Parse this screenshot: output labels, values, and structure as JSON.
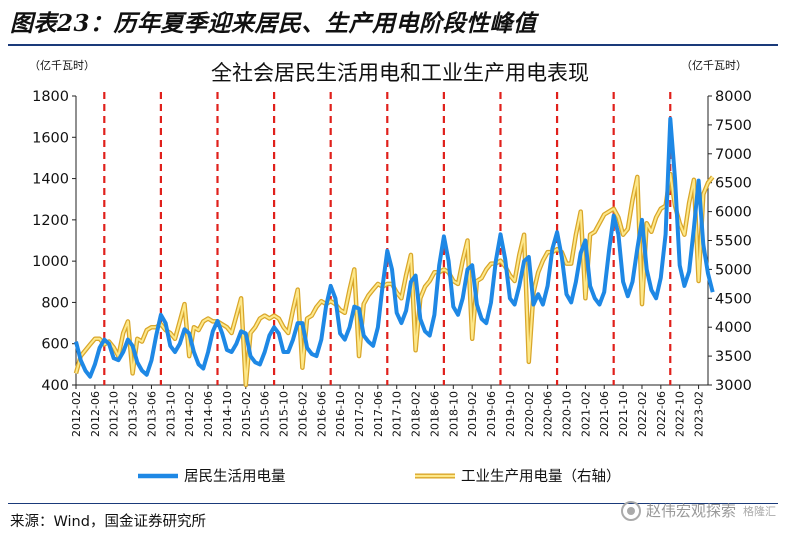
{
  "figure": {
    "title": "图表23：历年夏季迎来居民、生产用电阶段性峰值",
    "source": "来源：Wind，国金证券研究所",
    "watermark": "赵伟宏观探索",
    "watermark_sub": "格隆汇"
  },
  "chart_data": {
    "type": "line",
    "title": "全社会居民生活用电和工业生产用电表现",
    "left_unit": "（亿千瓦时）",
    "right_unit": "（亿千瓦时）",
    "ylim_left": [
      400,
      1800
    ],
    "ylim_right": [
      3000,
      8000
    ],
    "yticks_left": [
      400,
      600,
      800,
      1000,
      1200,
      1400,
      1600,
      1800
    ],
    "yticks_right": [
      3000,
      3500,
      4000,
      4500,
      5000,
      5500,
      6000,
      6500,
      7000,
      7500,
      8000
    ],
    "grid": false,
    "legend_position": "bottom",
    "x_tick_labels": [
      "2012-02",
      "2012-06",
      "2012-10",
      "2013-02",
      "2013-06",
      "2013-10",
      "2014-02",
      "2014-06",
      "2014-10",
      "2015-02",
      "2015-06",
      "2015-10",
      "2016-02",
      "2016-06",
      "2016-10",
      "2017-02",
      "2017-06",
      "2017-10",
      "2018-02",
      "2018-06",
      "2018-10",
      "2019-02",
      "2019-06",
      "2019-10",
      "2020-02",
      "2020-06",
      "2020-10",
      "2021-02",
      "2021-06",
      "2021-10",
      "2022-02",
      "2022-06",
      "2022-10",
      "2023-02"
    ],
    "x_start": "2012-02",
    "x_end": "2023-04",
    "marker_lines": [
      "2012-08",
      "2013-08",
      "2014-08",
      "2015-08",
      "2016-08",
      "2017-08",
      "2018-08",
      "2019-08",
      "2020-08",
      "2021-08",
      "2022-08"
    ],
    "series": [
      {
        "name": "居民生活用电量",
        "axis": "left",
        "color": "#1e88e5",
        "values": [
          [
            610,
            520,
            470,
            440,
            500,
            580,
            620,
            600,
            530,
            520,
            560,
            620
          ],
          [
            590,
            510,
            470,
            450,
            520,
            640,
            740,
            700,
            590,
            560,
            600,
            670
          ],
          [
            650,
            560,
            500,
            480,
            560,
            660,
            710,
            650,
            570,
            560,
            600,
            660
          ],
          [
            650,
            540,
            510,
            500,
            560,
            640,
            680,
            650,
            560,
            560,
            620,
            700
          ],
          [
            700,
            580,
            550,
            540,
            620,
            780,
            880,
            820,
            650,
            620,
            680,
            780
          ],
          [
            770,
            640,
            610,
            590,
            680,
            880,
            1050,
            960,
            750,
            700,
            760,
            900
          ],
          [
            930,
            720,
            660,
            640,
            740,
            980,
            1120,
            1000,
            780,
            740,
            820,
            960
          ],
          [
            980,
            790,
            720,
            700,
            800,
            1000,
            1130,
            1010,
            820,
            790,
            880,
            1000
          ],
          [
            1020,
            790,
            840,
            790,
            880,
            1060,
            1140,
            1020,
            840,
            800,
            900,
            1040
          ],
          [
            1100,
            880,
            820,
            790,
            850,
            1050,
            1220,
            1130,
            900,
            830,
            900,
            1060
          ],
          [
            1200,
            960,
            860,
            820,
            920,
            1130,
            1690,
            1400,
            980,
            880,
            950,
            1160
          ],
          [
            1390,
            1080,
            940,
            850
          ]
        ]
      },
      {
        "name": "工业生产用电量（右轴）",
        "axis": "right",
        "color": "#f5c14b",
        "values": [
          [
            3200,
            3500,
            3600,
            3700,
            3800,
            3800,
            3700,
            3750,
            3650,
            3500,
            3900,
            4100
          ],
          [
            3200,
            3800,
            3750,
            3950,
            4000,
            4000,
            4050,
            3950,
            3900,
            3800,
            4100,
            4400
          ],
          [
            3500,
            4000,
            3950,
            4100,
            4150,
            4100,
            4100,
            4050,
            4000,
            3900,
            4200,
            4500
          ],
          [
            3000,
            3900,
            4000,
            4150,
            4200,
            4150,
            4200,
            4150,
            4000,
            3900,
            4300,
            4650
          ],
          [
            3300,
            4150,
            4200,
            4350,
            4450,
            4400,
            4450,
            4400,
            4300,
            4250,
            4650,
            5000
          ],
          [
            3500,
            4400,
            4550,
            4650,
            4750,
            4700,
            4750,
            4750,
            4600,
            4500,
            4900,
            5250
          ],
          [
            3600,
            4500,
            4700,
            4800,
            4950,
            4950,
            5000,
            4950,
            4800,
            4750,
            5150,
            5500
          ],
          [
            3800,
            4800,
            4850,
            5000,
            5100,
            5100,
            5150,
            5050,
            4900,
            4800,
            5250,
            5600
          ],
          [
            3400,
            4600,
            4950,
            5150,
            5300,
            5300,
            5350,
            5300,
            5100,
            5100,
            5600,
            6000
          ],
          [
            4500,
            5600,
            5650,
            5800,
            5950,
            6000,
            6050,
            5900,
            5600,
            5700,
            6200,
            6600
          ],
          [
            4400,
            5800,
            5650,
            5900,
            6050,
            6100,
            6650,
            6100,
            5800,
            5600,
            6150,
            6550
          ],
          [
            4800,
            6300,
            6500,
            6600
          ]
        ]
      }
    ]
  }
}
